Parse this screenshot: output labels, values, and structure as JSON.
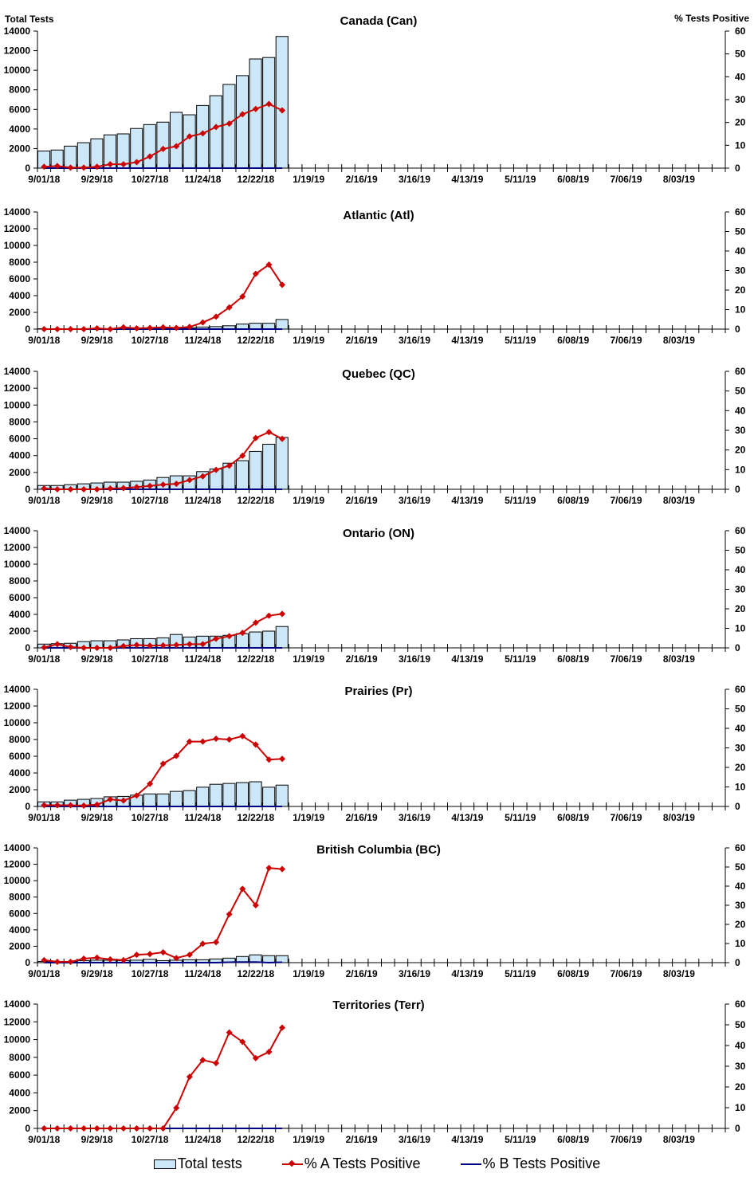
{
  "colors": {
    "bar_fill": "#cce8f8",
    "a_line": "#cc0000",
    "b_line": "#000080"
  },
  "legend": [
    {
      "label": "Total tests",
      "kind": "bar"
    },
    {
      "label": "% A Tests Positive",
      "kind": "line-marker"
    },
    {
      "label": "% B Tests Positive",
      "kind": "line"
    }
  ],
  "chart_data": [
    {
      "type": "bar+line",
      "title": "Canada (Can)",
      "ylabel": "Total Tests",
      "y2label": "% Tests Positive",
      "ylim": [
        0,
        14000
      ],
      "y2lim": [
        0,
        60
      ],
      "x_tick_labels": [
        "9/01/18",
        "9/29/18",
        "10/27/18",
        "11/24/18",
        "12/22/18",
        "1/19/19",
        "2/16/19",
        "3/16/19",
        "4/13/19",
        "5/11/19",
        "6/08/19",
        "7/06/19",
        "8/03/19"
      ],
      "total_tests": [
        1750,
        1850,
        2250,
        2600,
        3000,
        3400,
        3500,
        4050,
        4450,
        4700,
        5700,
        5450,
        6400,
        7400,
        8550,
        9450,
        11150,
        11300,
        13450
      ],
      "pct_a": [
        0.6,
        0.9,
        0.2,
        0.2,
        0.6,
        1.7,
        1.7,
        2.6,
        5.1,
        8.4,
        9.6,
        13.9,
        15.2,
        18,
        19.5,
        23.6,
        25.9,
        28.1,
        25.3
      ],
      "pct_b": [
        0,
        0,
        0,
        0,
        0,
        0,
        0,
        0,
        0,
        0,
        0,
        0,
        0,
        0,
        0,
        0,
        0,
        0,
        0
      ]
    },
    {
      "type": "bar+line",
      "title": "Atlantic (Atl)",
      "ylim": [
        0,
        14000
      ],
      "y2lim": [
        0,
        60
      ],
      "x_tick_labels": [
        "9/01/18",
        "9/29/18",
        "10/27/18",
        "11/24/18",
        "12/22/18",
        "1/19/19",
        "2/16/19",
        "3/16/19",
        "4/13/19",
        "5/11/19",
        "6/08/19",
        "7/06/19",
        "8/03/19"
      ],
      "total_tests": [
        50,
        50,
        50,
        50,
        50,
        50,
        50,
        50,
        100,
        100,
        150,
        150,
        250,
        300,
        400,
        600,
        700,
        700,
        1150
      ],
      "pct_a": [
        0,
        0,
        0,
        0,
        0.4,
        0,
        0.9,
        0.4,
        0.6,
        0.9,
        0.6,
        1.1,
        3.4,
        6.4,
        11.1,
        16.7,
        28.3,
        33,
        22.7
      ],
      "pct_b": [
        0,
        0,
        0,
        0,
        0,
        0,
        0,
        0,
        0,
        0,
        0,
        0,
        0,
        0,
        0,
        0,
        0,
        0,
        0
      ]
    },
    {
      "type": "bar+line",
      "title": "Quebec (QC)",
      "ylim": [
        0,
        14000
      ],
      "y2lim": [
        0,
        60
      ],
      "x_tick_labels": [
        "9/01/18",
        "9/29/18",
        "10/27/18",
        "11/24/18",
        "12/22/18",
        "1/19/19",
        "2/16/19",
        "3/16/19",
        "4/13/19",
        "5/11/19",
        "6/08/19",
        "7/06/19",
        "8/03/19"
      ],
      "total_tests": [
        450,
        450,
        550,
        650,
        750,
        850,
        850,
        950,
        1100,
        1400,
        1600,
        1600,
        2100,
        2400,
        3100,
        3400,
        4500,
        5350,
        6150
      ],
      "pct_a": [
        0.4,
        0,
        0,
        0,
        0,
        0.4,
        0.6,
        1.1,
        1.7,
        2.4,
        2.8,
        4.7,
        6.6,
        9.9,
        12,
        17.1,
        26.1,
        29.1,
        25.7
      ],
      "pct_b": [
        0,
        0,
        0,
        0,
        0,
        0,
        0,
        0,
        0,
        0,
        0,
        0,
        0,
        0,
        0,
        0,
        0,
        0,
        0
      ]
    },
    {
      "type": "bar+line",
      "title": "Ontario (ON)",
      "ylim": [
        0,
        14000
      ],
      "y2lim": [
        0,
        60
      ],
      "x_tick_labels": [
        "9/01/18",
        "9/29/18",
        "10/27/18",
        "11/24/18",
        "12/22/18",
        "1/19/19",
        "2/16/19",
        "3/16/19",
        "4/13/19",
        "5/11/19",
        "6/08/19",
        "7/06/19",
        "8/03/19"
      ],
      "total_tests": [
        450,
        500,
        550,
        750,
        850,
        850,
        950,
        1100,
        1100,
        1200,
        1600,
        1300,
        1400,
        1400,
        1500,
        1700,
        1900,
        2000,
        2550
      ],
      "pct_a": [
        0.2,
        1.9,
        0.4,
        0,
        0,
        0,
        0.9,
        1.5,
        1.1,
        1.3,
        1.5,
        1.9,
        1.9,
        4.7,
        6,
        7.7,
        12.9,
        16.5,
        17.4
      ],
      "pct_b": [
        0,
        0,
        0,
        0,
        0,
        0,
        0,
        0,
        0,
        0,
        0,
        0,
        0,
        0,
        0,
        0,
        0,
        0,
        0
      ]
    },
    {
      "type": "bar+line",
      "title": "Prairies (Pr)",
      "ylim": [
        0,
        14000
      ],
      "y2lim": [
        0,
        60
      ],
      "x_tick_labels": [
        "9/01/18",
        "9/29/18",
        "10/27/18",
        "11/24/18",
        "12/22/18",
        "1/19/19",
        "2/16/19",
        "3/16/19",
        "4/13/19",
        "5/11/19",
        "6/08/19",
        "7/06/19",
        "8/03/19"
      ],
      "total_tests": [
        550,
        550,
        750,
        850,
        950,
        1150,
        1200,
        1350,
        1500,
        1500,
        1800,
        1900,
        2300,
        2650,
        2750,
        2850,
        2950,
        2300,
        2550
      ],
      "pct_a": [
        0.6,
        0.6,
        0.6,
        0.4,
        0.9,
        3.6,
        3,
        5.6,
        11.6,
        21.9,
        25.9,
        33.2,
        33.2,
        34.7,
        34.3,
        36,
        31.7,
        24,
        24.4
      ],
      "pct_b": [
        0,
        0,
        0,
        0,
        0,
        0,
        0,
        0,
        0,
        0,
        0,
        0,
        0,
        0,
        0,
        0,
        0,
        0,
        0
      ]
    },
    {
      "type": "bar+line",
      "title": "British Columbia (BC)",
      "ylim": [
        0,
        14000
      ],
      "y2lim": [
        0,
        60
      ],
      "x_tick_labels": [
        "9/01/18",
        "9/29/18",
        "10/27/18",
        "11/24/18",
        "12/22/18",
        "1/19/19",
        "2/16/19",
        "3/16/19",
        "4/13/19",
        "5/11/19",
        "6/08/19",
        "7/06/19",
        "8/03/19"
      ],
      "total_tests": [
        150,
        150,
        150,
        250,
        300,
        300,
        250,
        300,
        400,
        250,
        300,
        350,
        350,
        450,
        550,
        750,
        950,
        850,
        850
      ],
      "pct_a": [
        1.3,
        0.4,
        0.4,
        2.1,
        2.6,
        1.7,
        1.3,
        4.1,
        4.5,
        5.4,
        2.4,
        4.1,
        9.9,
        10.7,
        25.3,
        38.6,
        30,
        49.5,
        48.9
      ],
      "pct_b": [
        0,
        0,
        0,
        0,
        0,
        0,
        0,
        0,
        0,
        0,
        0,
        0,
        0,
        0,
        0.2,
        0.3,
        0.3,
        0,
        0.2
      ]
    },
    {
      "type": "bar+line",
      "title": "Territories (Terr)",
      "ylim": [
        0,
        14000
      ],
      "y2lim": [
        0,
        60
      ],
      "x_tick_labels": [
        "9/01/18",
        "9/29/18",
        "10/27/18",
        "11/24/18",
        "12/22/18",
        "1/19/19",
        "2/16/19",
        "3/16/19",
        "4/13/19",
        "5/11/19",
        "6/08/19",
        "7/06/19",
        "8/03/19"
      ],
      "total_tests": [
        0,
        0,
        0,
        0,
        0,
        0,
        0,
        0,
        0,
        0,
        10,
        10,
        10,
        10,
        10,
        10,
        10,
        10,
        10
      ],
      "pct_a": [
        0,
        0,
        0,
        0,
        0,
        0,
        0,
        0,
        0,
        0,
        9.9,
        24.9,
        33,
        31.5,
        46.3,
        41.8,
        33.9,
        36.9,
        48.6
      ],
      "pct_b": [
        0,
        0,
        0,
        0,
        0,
        0,
        0,
        0,
        0,
        0,
        0,
        0,
        0,
        0,
        0,
        0,
        0,
        0,
        0
      ]
    }
  ]
}
